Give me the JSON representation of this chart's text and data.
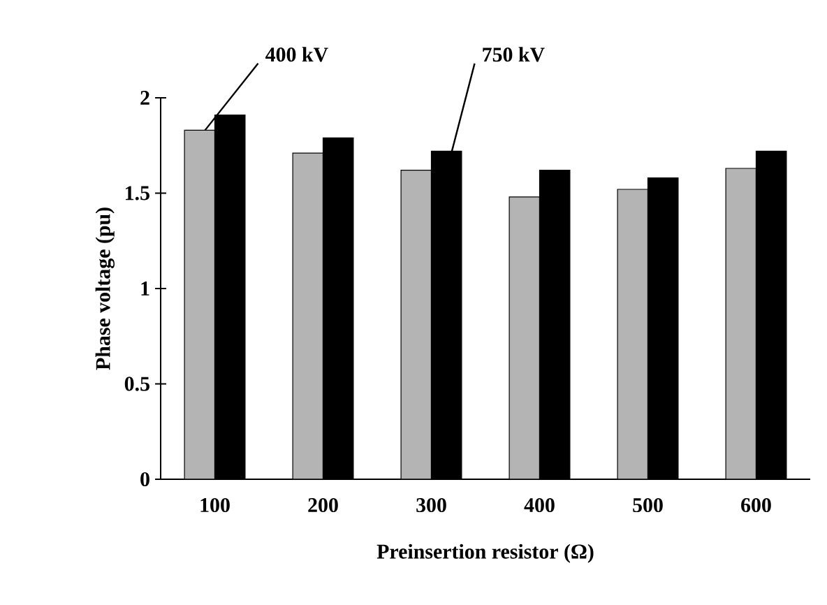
{
  "chart_data": {
    "type": "bar",
    "xlabel": "Preinsertion resistor (Ω)",
    "ylabel": "Phase voltage (pu)",
    "categories": [
      "100",
      "200",
      "300",
      "400",
      "500",
      "600"
    ],
    "series": [
      {
        "name": "400 kV",
        "color": "#b4b4b4",
        "values": [
          1.83,
          1.71,
          1.62,
          1.48,
          1.52,
          1.63
        ]
      },
      {
        "name": "750 kV",
        "color": "#000000",
        "values": [
          1.91,
          1.79,
          1.72,
          1.62,
          1.58,
          1.72
        ]
      }
    ],
    "ylim": [
      0,
      2
    ],
    "yticks": [
      0,
      0.5,
      1,
      1.5,
      2
    ]
  }
}
